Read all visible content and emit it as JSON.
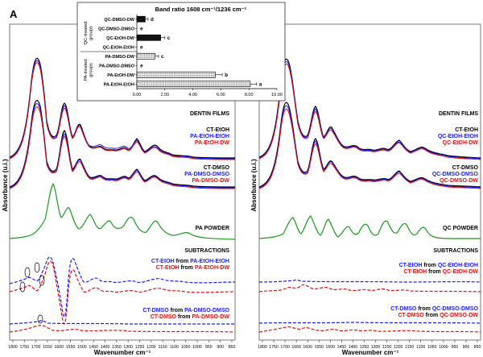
{
  "panels": [
    {
      "letter": "A",
      "xlabel": "Wavenumber cm⁻¹",
      "xticks": [
        "1800",
        "1750",
        "1700",
        "1650",
        "1600",
        "1550",
        "1500",
        "1450",
        "1400",
        "1350",
        "1300",
        "1250",
        "1200",
        "1150",
        "1100",
        "1050",
        "1000",
        "950",
        "900",
        "850"
      ],
      "film_title": "DENTIN FILMS",
      "film_legend1": [
        {
          "text": "CT-EtOH",
          "color": "#000000"
        },
        {
          "text": "PA-EtOH-EtOH",
          "color": "#1a1aff"
        },
        {
          "text": "PA-EtOH-DW",
          "color": "#e01010"
        }
      ],
      "film_legend2": [
        {
          "text": "CT-DMSO",
          "color": "#000000"
        },
        {
          "text": "PA-DMSO-DMSO",
          "color": "#1a1aff"
        },
        {
          "text": "PA-DMSO-DW",
          "color": "#e01010"
        }
      ],
      "powder_label": "PA POWDER",
      "subtractions_title": "SUBTRACTIONS",
      "sub1": [
        {
          "a": "CT-EtOH",
          "from": " from ",
          "b": "PA-EtOH-EtOH",
          "color": "#1a1aff"
        },
        {
          "a": "CT-EtOH",
          "from": " from ",
          "b": "PA-EtOH-DW",
          "color": "#e01010"
        }
      ],
      "sub2": [
        {
          "a": "CT-DMSO",
          "from": " from ",
          "b": "PA-DMSO-DMSO",
          "color": "#1a1aff"
        },
        {
          "a": "CT-DMSO",
          "from": " from ",
          "b": "PA-DMSO-DW",
          "color": "#e01010"
        }
      ]
    },
    {
      "letter": "B",
      "xlabel": "Wavenumber cm⁻¹",
      "xticks": [
        "1800",
        "1750",
        "1700",
        "1650",
        "1600",
        "1550",
        "1500",
        "1450",
        "1400",
        "1350",
        "1300",
        "1250",
        "1200",
        "1150",
        "1100",
        "1050",
        "1000",
        "950",
        "900",
        "850"
      ],
      "film_title": "DENTIN FILMS",
      "film_legend1": [
        {
          "text": "CT-EtOH",
          "color": "#000000"
        },
        {
          "text": "QC-EtOH-EtOH",
          "color": "#1a1aff"
        },
        {
          "text": "QC-EtOH-DW",
          "color": "#e01010"
        }
      ],
      "film_legend2": [
        {
          "text": "CT-DMSO",
          "color": "#000000"
        },
        {
          "text": "QC-DMSO-DMSO",
          "color": "#1a1aff"
        },
        {
          "text": "QC-DMSO-DW",
          "color": "#e01010"
        }
      ],
      "powder_label": "QC POWDER",
      "subtractions_title": "SUBTRACTIONS",
      "sub1": [
        {
          "a": "CT-EtOH",
          "from": " from ",
          "b": "QC-EtOH-EtOH",
          "color": "#1a1aff"
        },
        {
          "a": "CT-EtOH",
          "from": " from ",
          "b": "QC-EtOH-DW",
          "color": "#e01010"
        }
      ],
      "sub2": [
        {
          "a": "CT-DMSO",
          "from": " from ",
          "b": "QC-DMSO-DMSO",
          "color": "#1a1aff"
        },
        {
          "a": "CT-DMSO",
          "from": " from ",
          "b": "QC-DMSO-DW",
          "color": "#e01010"
        }
      ]
    }
  ],
  "ylabel": "Absorbance (u.i.)",
  "chart_data": {
    "type": "bar",
    "orientation": "horizontal",
    "title": "Band ratio 1608 cm⁻¹/1236 cm⁻¹",
    "groups": [
      "QC-treated groups",
      "PA-treated groups"
    ],
    "categories": [
      "QC-DMSO-DW",
      "QC-DMSO-DMSO",
      "QC-EtOH-DW",
      "QC-EtOH-EtOH",
      "PA-DMSO-DW",
      "PA-DMSO-DMSO",
      "PA-EtOH-DW",
      "PA-EtOH-EtOH"
    ],
    "group_of": [
      0,
      0,
      0,
      0,
      1,
      1,
      1,
      1
    ],
    "values": [
      0.6,
      0,
      1.7,
      0,
      1.3,
      0,
      5.6,
      8.1
    ],
    "errors": [
      0.2,
      0,
      0.3,
      0,
      0.25,
      0,
      0.5,
      0.45
    ],
    "letters": [
      "d",
      "e",
      "c",
      "e",
      "c",
      "e",
      "b",
      "a"
    ],
    "xticks": [
      "0.00",
      "2.00",
      "4.00",
      "6.00",
      "8.00",
      "10.00"
    ],
    "xlim": [
      0,
      10
    ]
  }
}
